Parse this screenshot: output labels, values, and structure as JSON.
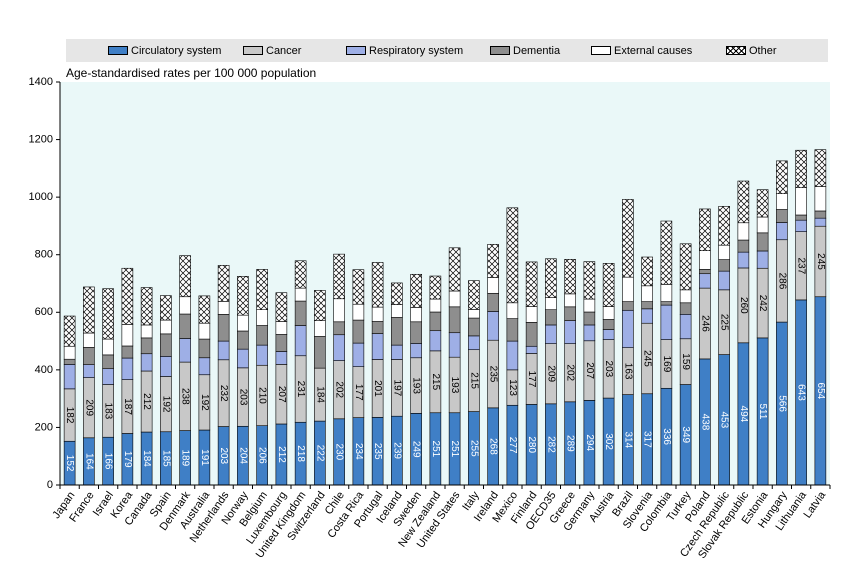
{
  "chart_data": {
    "type": "bar",
    "stacked": true,
    "subtitle": "Age-standardised rates per 100 000 population",
    "ylim": [
      0,
      1400
    ],
    "yticks": [
      0,
      200,
      400,
      600,
      800,
      1000,
      1200,
      1400
    ],
    "grid": false,
    "legend_position": "top",
    "categories": [
      "Japan",
      "France",
      "Israel",
      "Korea",
      "Canada",
      "Spain",
      "Denmark",
      "Australia",
      "Netherlands",
      "Norway",
      "Belgium",
      "Luxembourg",
      "United Kingdom",
      "Switzerland",
      "Chile",
      "Costa Rica",
      "Portugal",
      "Iceland",
      "Sweden",
      "New Zealand",
      "United States",
      "Italy",
      "Ireland",
      "Mexico",
      "Finland",
      "OECD35",
      "Greece",
      "Germany",
      "Austria",
      "Brazil",
      "Slovenia",
      "Colombia",
      "Turkey",
      "Poland",
      "Czech Republic",
      "Slovak Republic",
      "Estonia",
      "Hungary",
      "Lithuania",
      "Latvia"
    ],
    "series": [
      {
        "name": "Circulatory system",
        "color": "#3f7fc6",
        "values": [
          152,
          164,
          166,
          179,
          184,
          185,
          189,
          191,
          203,
          204,
          206,
          212,
          218,
          222,
          230,
          234,
          235,
          239,
          249,
          251,
          251,
          255,
          268,
          277,
          280,
          282,
          289,
          294,
          302,
          314,
          317,
          336,
          349,
          438,
          453,
          494,
          511,
          566,
          643,
          654
        ]
      },
      {
        "name": "Cancer",
        "color": "#c8c8c8",
        "values": [
          182,
          209,
          183,
          187,
          212,
          192,
          238,
          192,
          232,
          203,
          210,
          207,
          231,
          184,
          202,
          177,
          201,
          197,
          193,
          215,
          193,
          215,
          235,
          123,
          177,
          209,
          202,
          207,
          203,
          163,
          245,
          169,
          159,
          246,
          225,
          260,
          242,
          286,
          237,
          245
        ]
      },
      {
        "name": "Respiratory system",
        "color": "#9eafe6",
        "values": [
          85,
          45,
          55,
          75,
          60,
          70,
          82,
          59,
          65,
          65,
          70,
          45,
          105,
          0,
          90,
          82,
          90,
          50,
          50,
          70,
          85,
          48,
          100,
          100,
          25,
          65,
          80,
          55,
          35,
          130,
          50,
          120,
          85,
          50,
          65,
          55,
          60,
          60,
          40,
          28
        ]
      },
      {
        "name": "Dementia",
        "color": "#8e8e8e",
        "values": [
          18,
          60,
          48,
          42,
          55,
          78,
          85,
          65,
          93,
          63,
          68,
          59,
          85,
          110,
          45,
          80,
          42,
          96,
          75,
          65,
          90,
          62,
          63,
          78,
          83,
          53,
          48,
          45,
          35,
          30,
          25,
          12,
          40,
          15,
          40,
          42,
          63,
          45,
          18,
          25
        ]
      },
      {
        "name": "External causes",
        "color": "#ffffff",
        "values": [
          45,
          50,
          55,
          75,
          45,
          48,
          60,
          55,
          45,
          55,
          55,
          45,
          45,
          55,
          80,
          55,
          50,
          45,
          50,
          45,
          55,
          30,
          55,
          55,
          55,
          42,
          45,
          45,
          45,
          85,
          55,
          60,
          45,
          65,
          50,
          60,
          55,
          55,
          95,
          85
        ]
      },
      {
        "name": "Other",
        "color": "#ffffff",
        "pattern": "hatch",
        "values": [
          105,
          160,
          175,
          195,
          130,
          85,
          143,
          95,
          125,
          135,
          140,
          100,
          95,
          105,
          155,
          120,
          155,
          75,
          115,
          80,
          150,
          100,
          115,
          330,
          155,
          135,
          120,
          130,
          150,
          270,
          100,
          220,
          160,
          145,
          135,
          145,
          95,
          114,
          130,
          128
        ]
      }
    ],
    "data_label_series": [
      "Circulatory system",
      "Cancer"
    ]
  }
}
